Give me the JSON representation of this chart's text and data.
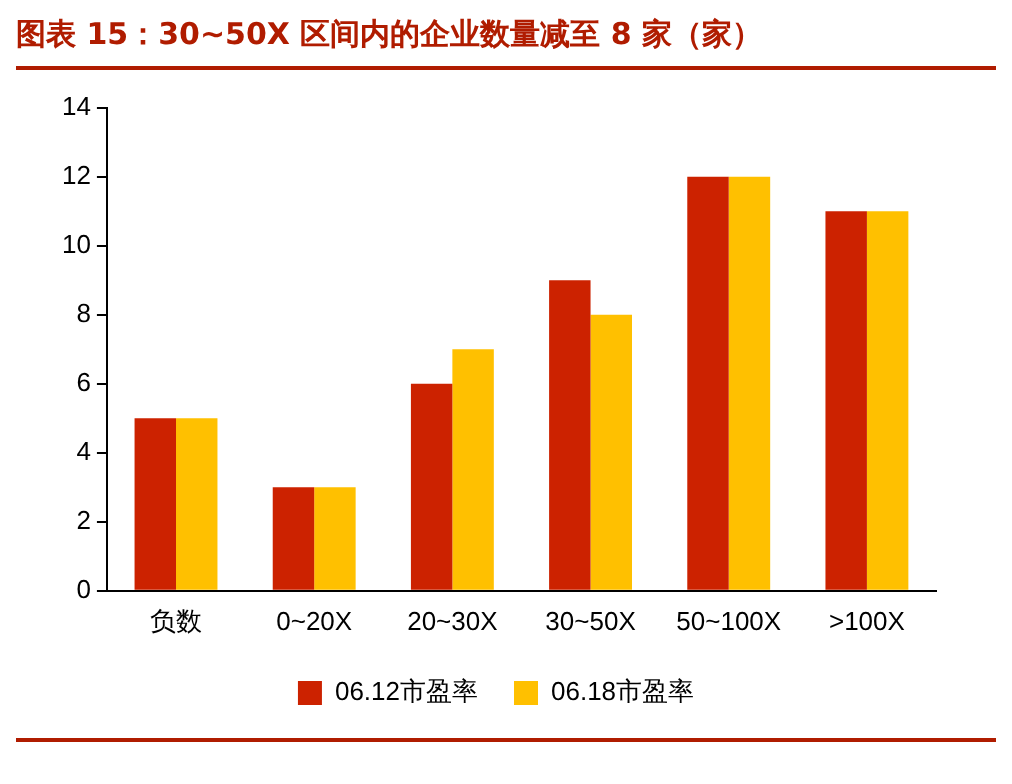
{
  "chart_data": {
    "type": "bar",
    "title": "图表 15：30~50X 区间内的企业数量减至 8 家（家）",
    "categories": [
      "负数",
      "0~20X",
      "20~30X",
      "30~50X",
      "50~100X",
      ">100X"
    ],
    "series": [
      {
        "name": "06.12市盈率",
        "color": "#cc2200",
        "values": [
          5,
          3,
          6,
          9,
          12,
          11
        ]
      },
      {
        "name": "06.18市盈率",
        "color": "#ffc000",
        "values": [
          5,
          3,
          7,
          8,
          12,
          11
        ]
      }
    ],
    "ylim": [
      0,
      14
    ],
    "yticks": [
      0,
      2,
      4,
      6,
      8,
      10,
      12,
      14
    ],
    "grid": false,
    "legend": "bottom"
  }
}
